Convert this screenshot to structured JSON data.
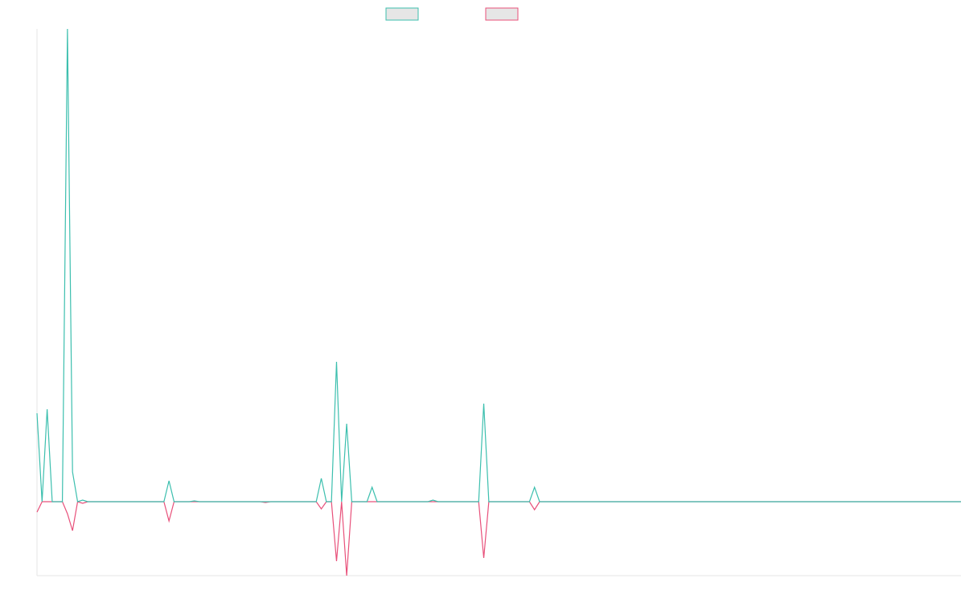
{
  "chart_data": {
    "type": "line",
    "x": [
      0,
      1,
      2,
      3,
      5,
      6,
      7,
      8,
      9,
      10,
      25,
      26,
      27,
      30,
      31,
      32,
      44,
      45,
      46,
      55,
      56,
      57,
      58,
      59,
      60,
      61,
      62,
      63,
      65,
      66,
      67,
      77,
      78,
      79,
      87,
      88,
      89,
      97,
      98,
      99,
      182
    ],
    "xlim": [
      0,
      182
    ],
    "ylim": [
      -92,
      588
    ],
    "series": [
      {
        "color": "#3cbfae",
        "values": [
          110,
          0,
          115,
          0,
          0,
          588,
          37,
          0,
          2,
          0,
          0,
          26,
          0,
          0,
          1,
          0,
          0,
          0,
          0,
          0,
          29,
          0,
          0,
          174,
          0,
          97,
          0,
          0,
          0,
          18,
          0,
          0,
          2,
          0,
          0,
          122,
          0,
          0,
          18,
          0,
          0
        ]
      },
      {
        "color": "#e8507a",
        "values": [
          -13,
          0,
          0,
          0,
          0,
          -15,
          -36,
          0,
          -2,
          0,
          0,
          -24,
          0,
          0,
          0,
          0,
          0,
          -1,
          0,
          0,
          -9,
          0,
          0,
          -74,
          0,
          -92,
          0,
          0,
          0,
          0,
          0,
          0,
          0,
          0,
          0,
          -70,
          0,
          0,
          -10,
          0,
          0
        ]
      }
    ]
  }
}
